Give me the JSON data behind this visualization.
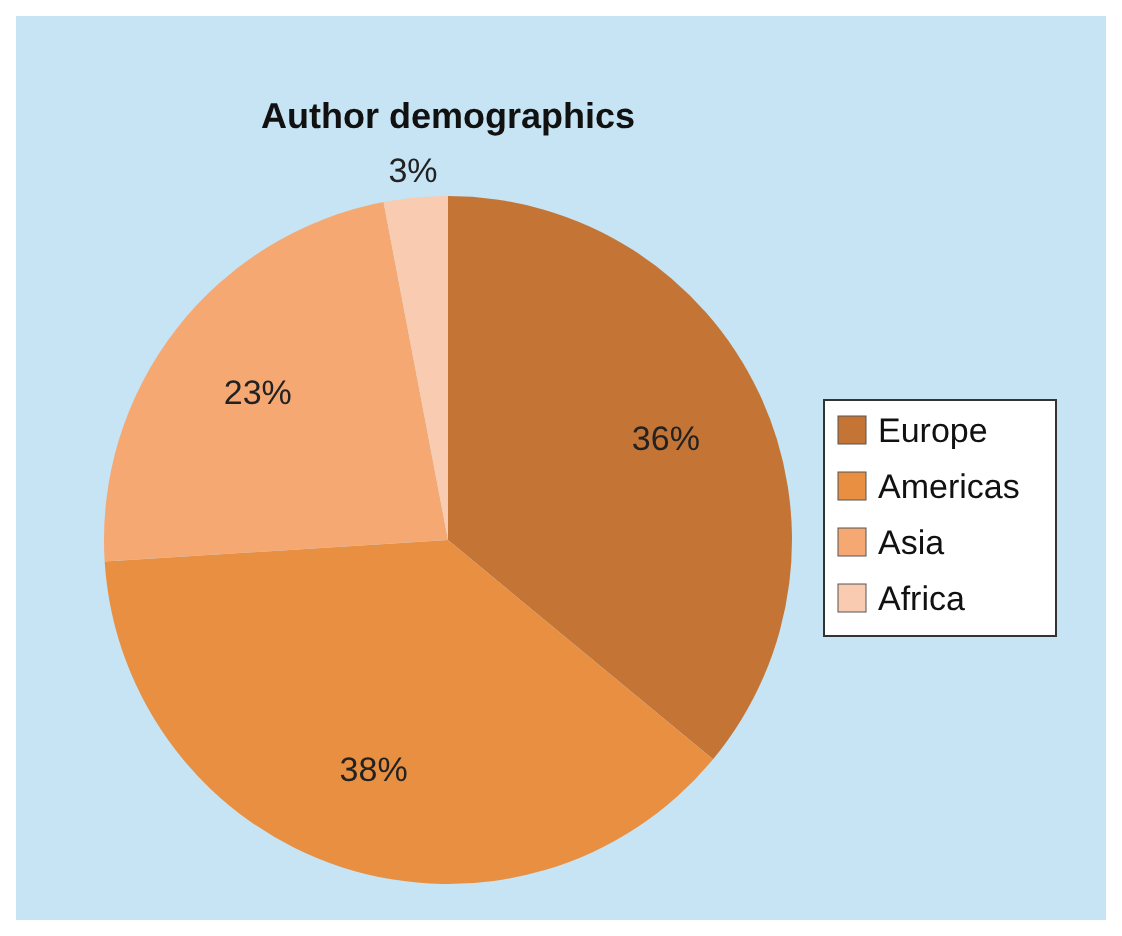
{
  "chart_data": {
    "type": "pie",
    "title": "Author demographics",
    "categories": [
      "Europe",
      "Americas",
      "Asia",
      "Africa"
    ],
    "values": [
      36,
      38,
      23,
      3
    ],
    "value_labels": [
      "36%",
      "38%",
      "23%",
      "3%"
    ],
    "colors": [
      "#c47535",
      "#e88f42",
      "#f5a872",
      "#f9cbb0"
    ],
    "legend": "right"
  }
}
